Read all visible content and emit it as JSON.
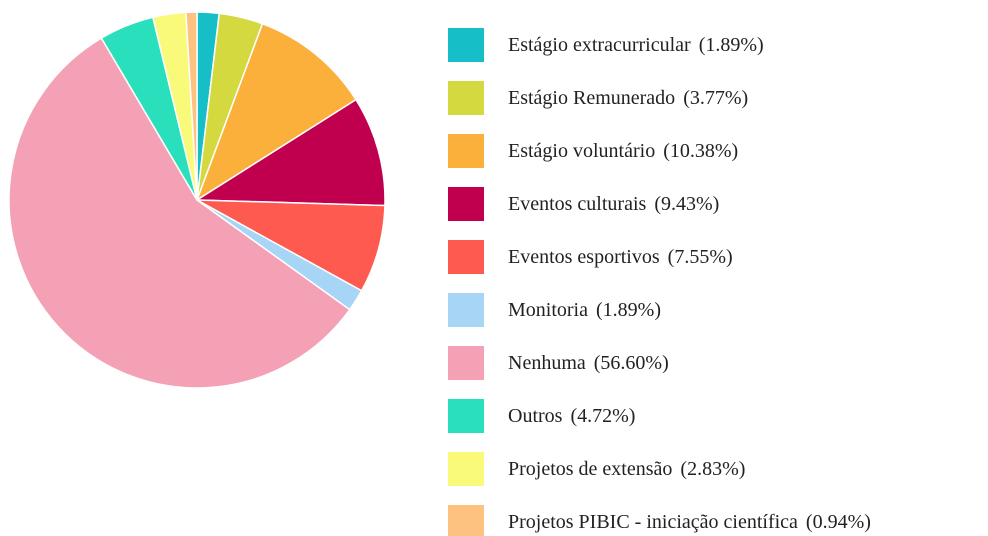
{
  "chart_data": {
    "type": "pie",
    "categories": [
      "Estágio extracurricular",
      "Estágio Remunerado",
      "Estágio voluntário",
      "Eventos culturais",
      "Eventos esportivos",
      "Monitoria",
      "Nenhuma",
      "Outros",
      "Projetos de extensão",
      "Projetos PIBIC - iniciação científica"
    ],
    "values": [
      1.89,
      3.77,
      10.38,
      9.43,
      7.55,
      1.89,
      56.6,
      4.72,
      2.83,
      0.94
    ],
    "value_labels": [
      "(1.89%)",
      "(3.77%)",
      "(10.38%)",
      "(9.43%)",
      "(7.55%)",
      "(1.89%)",
      "(56.60%)",
      "(4.72%)",
      "(2.83%)",
      "(0.94%)"
    ],
    "colors": [
      "#16bec8",
      "#d4d940",
      "#fbb03b",
      "#c0004e",
      "#ff5a4f",
      "#a6d5f5",
      "#f4a0b5",
      "#2ae0bc",
      "#fafa7a",
      "#fdc27f"
    ],
    "legend": "right"
  }
}
